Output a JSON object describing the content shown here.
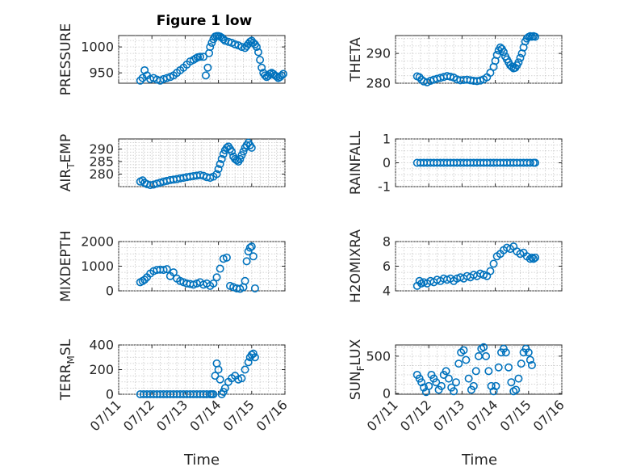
{
  "figure_title": "Figure 1 low",
  "x_axis_label": "Time",
  "x_tick_labels": [
    "07/11",
    "07/12",
    "07/13",
    "07/14",
    "07/15",
    "07/16"
  ],
  "marker_color": "#0072BD",
  "chart_data": [
    {
      "type": "scatter",
      "ylabel": "PRESSURE",
      "title": "Figure 1 low",
      "xlim": [
        0,
        5
      ],
      "ylim": [
        930,
        1022
      ],
      "yticks": [
        950,
        1000
      ],
      "yticklabels": [
        "950",
        "1000"
      ],
      "grid": true,
      "x": [
        0.65,
        0.72,
        0.78,
        0.85,
        0.95,
        1.05,
        1.15,
        1.25,
        1.35,
        1.45,
        1.55,
        1.65,
        1.75,
        1.85,
        1.95,
        2.05,
        2.15,
        2.25,
        2.32,
        2.38,
        2.45,
        2.55,
        2.62,
        2.68,
        2.72,
        2.75,
        2.8,
        2.85,
        2.9,
        2.95,
        3.0,
        3.05,
        3.1,
        3.15,
        3.2,
        3.3,
        3.4,
        3.5,
        3.6,
        3.7,
        3.8,
        3.85,
        3.9,
        3.95,
        4.0,
        4.05,
        4.1,
        4.15,
        4.2,
        4.25,
        4.3,
        4.35,
        4.4,
        4.45,
        4.5,
        4.55,
        4.6,
        4.65,
        4.7,
        4.75,
        4.8,
        4.85,
        4.9,
        4.95
      ],
      "y": [
        935,
        940,
        955,
        945,
        938,
        940,
        937,
        935,
        938,
        940,
        942,
        945,
        950,
        955,
        960,
        966,
        972,
        975,
        978,
        980,
        981,
        981,
        945,
        960,
        988,
        1000,
        1008,
        1015,
        1020,
        1021,
        1021,
        1020,
        1018,
        1015,
        1012,
        1010,
        1008,
        1005,
        1003,
        1000,
        998,
        1002,
        1006,
        1010,
        1012,
        1008,
        1005,
        1000,
        990,
        975,
        960,
        950,
        945,
        942,
        944,
        948,
        950,
        948,
        945,
        943,
        940,
        942,
        945,
        948
      ]
    },
    {
      "type": "scatter",
      "ylabel": "THETA",
      "xlim": [
        0,
        5
      ],
      "ylim": [
        280,
        296
      ],
      "yticks": [
        280,
        290
      ],
      "yticklabels": [
        "280",
        "290"
      ],
      "grid": true,
      "x": [
        0.65,
        0.72,
        0.78,
        0.85,
        0.95,
        1.05,
        1.15,
        1.25,
        1.35,
        1.45,
        1.55,
        1.65,
        1.75,
        1.85,
        1.95,
        2.05,
        2.15,
        2.25,
        2.35,
        2.45,
        2.55,
        2.65,
        2.75,
        2.85,
        2.95,
        3.0,
        3.05,
        3.1,
        3.15,
        3.2,
        3.25,
        3.3,
        3.35,
        3.4,
        3.45,
        3.5,
        3.55,
        3.6,
        3.65,
        3.7,
        3.75,
        3.8,
        3.85,
        3.9,
        3.95,
        4.0,
        4.05,
        4.1,
        4.15,
        4.2
      ],
      "y": [
        282.3,
        282.0,
        281.2,
        280.6,
        280.3,
        280.8,
        281.2,
        281.5,
        281.8,
        282.1,
        282.4,
        282.2,
        281.9,
        281.3,
        281.0,
        281.1,
        281.2,
        281.0,
        280.8,
        280.7,
        280.9,
        281.3,
        282.0,
        283.5,
        285.5,
        287.5,
        289.5,
        291.0,
        292.0,
        291.5,
        290.5,
        289.0,
        288.0,
        287.0,
        286.0,
        285.5,
        285.0,
        285.2,
        286.0,
        287.0,
        288.5,
        290.0,
        292.0,
        294.0,
        295.0,
        295.5,
        295.8,
        295.6,
        295.8,
        295.6
      ]
    },
    {
      "type": "scatter",
      "ylabel": "AIR_TEMP",
      "xlim": [
        0,
        5
      ],
      "ylim": [
        275,
        294
      ],
      "yticks": [
        280,
        285,
        290
      ],
      "yticklabels": [
        "280",
        "285",
        "290"
      ],
      "grid": true,
      "x": [
        0.65,
        0.72,
        0.78,
        0.85,
        0.95,
        1.05,
        1.15,
        1.25,
        1.35,
        1.45,
        1.55,
        1.65,
        1.75,
        1.85,
        1.95,
        2.05,
        2.15,
        2.25,
        2.35,
        2.45,
        2.55,
        2.65,
        2.75,
        2.85,
        2.95,
        3.0,
        3.05,
        3.1,
        3.15,
        3.2,
        3.25,
        3.3,
        3.35,
        3.4,
        3.45,
        3.5,
        3.55,
        3.6,
        3.65,
        3.7,
        3.75,
        3.8,
        3.85,
        3.9,
        3.95,
        4.0
      ],
      "y": [
        277.0,
        277.5,
        276.5,
        276.0,
        275.6,
        275.8,
        276.2,
        276.6,
        277.0,
        277.3,
        277.6,
        277.8,
        278.0,
        278.3,
        278.5,
        278.8,
        279.0,
        279.2,
        279.4,
        279.6,
        279.3,
        278.8,
        278.5,
        279.0,
        280.0,
        282.0,
        284.0,
        286.0,
        288.0,
        289.5,
        290.5,
        291.0,
        290.0,
        289.0,
        287.0,
        286.0,
        285.5,
        285.0,
        286.0,
        287.5,
        289.0,
        290.5,
        291.5,
        292.5,
        291.5,
        290.5
      ]
    },
    {
      "type": "scatter",
      "ylabel": "RAINFALL",
      "xlim": [
        0,
        5
      ],
      "ylim": [
        -1,
        1
      ],
      "yticks": [
        -1,
        0,
        1
      ],
      "yticklabels": [
        "-1",
        "0",
        "1"
      ],
      "grid": true,
      "x": [
        0.65,
        0.75,
        0.85,
        0.95,
        1.05,
        1.15,
        1.25,
        1.35,
        1.45,
        1.55,
        1.65,
        1.75,
        1.85,
        1.95,
        2.05,
        2.15,
        2.25,
        2.35,
        2.45,
        2.55,
        2.65,
        2.75,
        2.85,
        2.95,
        3.05,
        3.15,
        3.25,
        3.35,
        3.45,
        3.55,
        3.65,
        3.75,
        3.85,
        3.95,
        4.05,
        4.15,
        4.2
      ],
      "y": [
        0,
        0,
        0,
        0,
        0,
        0,
        0,
        0,
        0,
        0,
        0,
        0,
        0,
        0,
        0,
        0,
        0,
        0,
        0,
        0,
        0,
        0,
        0,
        0,
        0,
        0,
        0,
        0,
        0,
        0,
        0,
        0,
        0,
        0,
        0,
        0,
        0
      ]
    },
    {
      "type": "scatter",
      "ylabel": "MIXDEPTH",
      "xlim": [
        0,
        5
      ],
      "ylim": [
        0,
        2000
      ],
      "yticks": [
        0,
        1000,
        2000
      ],
      "yticklabels": [
        "0",
        "1000",
        "2000"
      ],
      "grid": true,
      "x": [
        0.65,
        0.72,
        0.78,
        0.85,
        0.95,
        1.05,
        1.15,
        1.25,
        1.35,
        1.45,
        1.55,
        1.65,
        1.75,
        1.85,
        1.95,
        2.05,
        2.15,
        2.25,
        2.35,
        2.45,
        2.55,
        2.65,
        2.75,
        2.85,
        2.95,
        3.05,
        3.15,
        3.25,
        3.35,
        3.45,
        3.55,
        3.65,
        3.75,
        3.8,
        3.85,
        3.9,
        3.95,
        4.0,
        4.05,
        4.1
      ],
      "y": [
        350,
        400,
        450,
        550,
        700,
        800,
        850,
        860,
        850,
        880,
        600,
        750,
        500,
        400,
        350,
        300,
        280,
        250,
        300,
        350,
        250,
        300,
        200,
        300,
        550,
        900,
        1300,
        1350,
        200,
        150,
        100,
        80,
        150,
        400,
        1200,
        1600,
        1750,
        1800,
        1400,
        100
      ]
    },
    {
      "type": "scatter",
      "ylabel": "H2OMIXRA",
      "xlim": [
        0,
        5
      ],
      "ylim": [
        4,
        8
      ],
      "yticks": [
        4,
        6,
        8
      ],
      "yticklabels": [
        "4",
        "6",
        "8"
      ],
      "grid": true,
      "x": [
        0.65,
        0.72,
        0.78,
        0.85,
        0.95,
        1.05,
        1.15,
        1.25,
        1.35,
        1.45,
        1.55,
        1.65,
        1.75,
        1.85,
        1.95,
        2.05,
        2.15,
        2.25,
        2.35,
        2.45,
        2.55,
        2.65,
        2.75,
        2.85,
        2.95,
        3.05,
        3.15,
        3.25,
        3.35,
        3.45,
        3.55,
        3.65,
        3.75,
        3.85,
        3.95,
        4.05,
        4.1,
        4.15,
        4.2
      ],
      "y": [
        4.4,
        4.8,
        4.6,
        4.7,
        4.6,
        4.8,
        4.7,
        4.9,
        4.8,
        5.0,
        4.9,
        5.0,
        4.8,
        5.0,
        5.1,
        5.0,
        5.2,
        5.1,
        5.3,
        5.2,
        5.4,
        5.3,
        5.2,
        5.6,
        6.2,
        6.8,
        7.0,
        7.3,
        7.5,
        7.4,
        7.6,
        7.2,
        7.0,
        7.1,
        6.8,
        6.6,
        6.7,
        6.6,
        6.7
      ]
    },
    {
      "type": "scatter",
      "ylabel": "TERR_MSL",
      "xlim": [
        0,
        5
      ],
      "ylim": [
        0,
        400
      ],
      "yticks": [
        0,
        200,
        400
      ],
      "yticklabels": [
        "0",
        "200",
        "400"
      ],
      "grid": true,
      "x": [
        0.65,
        0.75,
        0.85,
        0.95,
        1.05,
        1.15,
        1.25,
        1.35,
        1.45,
        1.55,
        1.65,
        1.75,
        1.85,
        1.95,
        2.05,
        2.15,
        2.25,
        2.35,
        2.45,
        2.55,
        2.65,
        2.75,
        2.8,
        2.85,
        2.9,
        2.95,
        3.0,
        3.05,
        3.1,
        3.15,
        3.2,
        3.3,
        3.4,
        3.5,
        3.6,
        3.7,
        3.8,
        3.9,
        3.95,
        4.0,
        4.05,
        4.1
      ],
      "y": [
        0,
        0,
        0,
        0,
        0,
        0,
        0,
        0,
        0,
        0,
        0,
        0,
        0,
        0,
        0,
        0,
        0,
        0,
        0,
        0,
        0,
        0,
        0,
        0,
        150,
        250,
        200,
        120,
        0,
        20,
        50,
        100,
        130,
        150,
        120,
        130,
        200,
        260,
        300,
        320,
        330,
        300
      ]
    },
    {
      "type": "scatter",
      "ylabel": "SUN_FLUX",
      "xlim": [
        0,
        5
      ],
      "ylim": [
        -10,
        650
      ],
      "yticks": [
        0,
        500
      ],
      "yticklabels": [
        "0",
        "500"
      ],
      "grid": true,
      "x": [
        0.65,
        0.72,
        0.78,
        0.85,
        0.92,
        1.0,
        1.08,
        1.15,
        1.22,
        1.3,
        1.38,
        1.45,
        1.52,
        1.6,
        1.68,
        1.75,
        1.82,
        1.9,
        1.97,
        2.05,
        2.12,
        2.2,
        2.28,
        2.35,
        2.42,
        2.5,
        2.58,
        2.65,
        2.72,
        2.8,
        2.88,
        2.95,
        3.02,
        3.1,
        3.18,
        3.25,
        3.32,
        3.4,
        3.48,
        3.55,
        3.62,
        3.7,
        3.78,
        3.85,
        3.92,
        4.0,
        4.05,
        4.1
      ],
      "y": [
        250,
        200,
        150,
        80,
        20,
        100,
        250,
        200,
        150,
        50,
        100,
        250,
        300,
        200,
        80,
        30,
        150,
        400,
        550,
        580,
        450,
        200,
        50,
        100,
        300,
        500,
        600,
        620,
        500,
        300,
        100,
        30,
        100,
        350,
        550,
        600,
        550,
        350,
        150,
        30,
        50,
        200,
        400,
        550,
        600,
        550,
        450,
        380
      ]
    }
  ]
}
